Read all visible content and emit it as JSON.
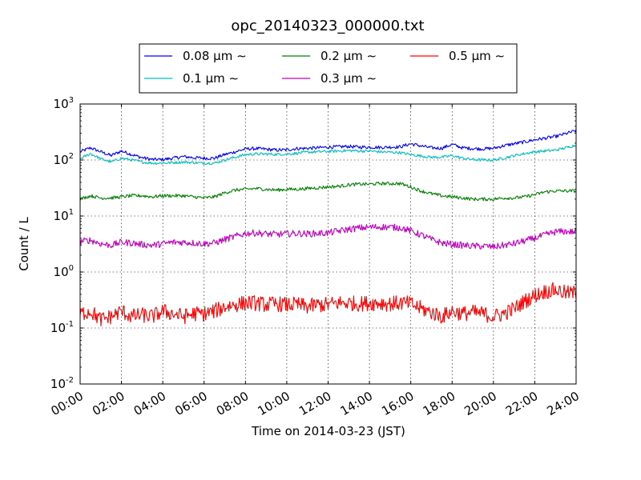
{
  "chart_data": {
    "type": "line",
    "title": "opc_20140323_000000.txt",
    "xlabel": "Time on 2014-03-23 (JST)",
    "ylabel": "Count / L",
    "yscale": "log",
    "ylim": [
      0.01,
      1000
    ],
    "xlim": [
      "00:00",
      "24:00"
    ],
    "grid": true,
    "legend_position": "top",
    "x_ticks": [
      "00:00",
      "02:00",
      "04:00",
      "06:00",
      "08:00",
      "10:00",
      "12:00",
      "14:00",
      "16:00",
      "18:00",
      "20:00",
      "22:00",
      "24:00"
    ],
    "y_ticks": [
      {
        "base": "10",
        "exp": "-2"
      },
      {
        "base": "10",
        "exp": "-1"
      },
      {
        "base": "10",
        "exp": "0"
      },
      {
        "base": "10",
        "exp": "1"
      },
      {
        "base": "10",
        "exp": "2"
      },
      {
        "base": "10",
        "exp": "3"
      }
    ],
    "x": [
      "00:00",
      "00:30",
      "01:00",
      "01:30",
      "02:00",
      "02:30",
      "03:00",
      "03:30",
      "04:00",
      "04:30",
      "05:00",
      "05:30",
      "06:00",
      "06:30",
      "07:00",
      "07:30",
      "08:00",
      "08:30",
      "09:00",
      "09:30",
      "10:00",
      "10:30",
      "11:00",
      "11:30",
      "12:00",
      "12:30",
      "13:00",
      "13:30",
      "14:00",
      "14:30",
      "15:00",
      "15:30",
      "16:00",
      "16:30",
      "17:00",
      "17:30",
      "18:00",
      "18:30",
      "19:00",
      "19:30",
      "20:00",
      "20:30",
      "21:00",
      "21:30",
      "22:00",
      "22:30",
      "23:00",
      "23:30",
      "24:00"
    ],
    "series": [
      {
        "name": "0.08 μm ∼",
        "color": "#0000ff",
        "noise": 0.03,
        "values": [
          140,
          165,
          140,
          120,
          145,
          125,
          110,
          102,
          102,
          108,
          115,
          110,
          108,
          108,
          125,
          140,
          158,
          160,
          156,
          150,
          152,
          160,
          162,
          165,
          170,
          172,
          175,
          170,
          170,
          168,
          170,
          172,
          195,
          178,
          165,
          162,
          190,
          165,
          160,
          158,
          162,
          180,
          195,
          210,
          230,
          245,
          262,
          295,
          335
        ]
      },
      {
        "name": "0.1 μm ∼",
        "color": "#00bfbf",
        "noise": 0.025,
        "values": [
          105,
          130,
          105,
          92,
          108,
          100,
          92,
          88,
          88,
          90,
          92,
          90,
          88,
          88,
          100,
          112,
          125,
          128,
          128,
          126,
          128,
          132,
          138,
          140,
          142,
          145,
          148,
          145,
          145,
          140,
          138,
          135,
          125,
          118,
          112,
          112,
          120,
          108,
          102,
          100,
          100,
          108,
          120,
          130,
          140,
          145,
          150,
          165,
          185
        ]
      },
      {
        "name": "0.2 μm ∼",
        "color": "#008000",
        "noise": 0.03,
        "values": [
          20,
          23,
          21,
          21,
          22,
          23,
          23,
          22,
          23,
          23,
          23,
          22,
          21,
          22,
          26,
          29,
          30,
          31,
          30,
          29,
          30,
          30,
          31,
          32,
          33,
          34,
          36,
          37,
          37,
          38,
          38,
          38,
          33,
          28,
          25,
          23,
          22,
          21,
          20,
          20,
          20,
          21,
          21,
          22,
          24,
          27,
          28,
          28,
          28
        ]
      },
      {
        "name": "0.3 μm ∼",
        "color": "#bf00bf",
        "noise": 0.06,
        "values": [
          3.5,
          3.7,
          3.2,
          3.0,
          3.4,
          3.3,
          3.1,
          3.0,
          3.2,
          3.4,
          3.4,
          3.3,
          3.2,
          3.3,
          3.8,
          4.3,
          4.9,
          5.0,
          4.8,
          4.7,
          4.8,
          4.9,
          4.8,
          4.9,
          5.0,
          5.4,
          5.8,
          6.1,
          6.3,
          6.4,
          6.3,
          6.2,
          5.4,
          4.6,
          3.8,
          3.3,
          3.1,
          3.0,
          2.9,
          2.9,
          2.8,
          3.0,
          3.2,
          3.6,
          4.0,
          4.6,
          5.2,
          5.3,
          5.2
        ]
      },
      {
        "name": "0.5 μm ∼",
        "color": "#ff0000",
        "noise": 0.14,
        "values": [
          0.18,
          0.2,
          0.14,
          0.16,
          0.2,
          0.16,
          0.17,
          0.16,
          0.2,
          0.18,
          0.16,
          0.18,
          0.18,
          0.2,
          0.24,
          0.26,
          0.28,
          0.28,
          0.26,
          0.27,
          0.26,
          0.26,
          0.24,
          0.26,
          0.26,
          0.28,
          0.28,
          0.27,
          0.28,
          0.28,
          0.27,
          0.28,
          0.27,
          0.22,
          0.19,
          0.16,
          0.2,
          0.18,
          0.19,
          0.18,
          0.16,
          0.18,
          0.22,
          0.3,
          0.38,
          0.45,
          0.48,
          0.42,
          0.42
        ]
      }
    ]
  }
}
